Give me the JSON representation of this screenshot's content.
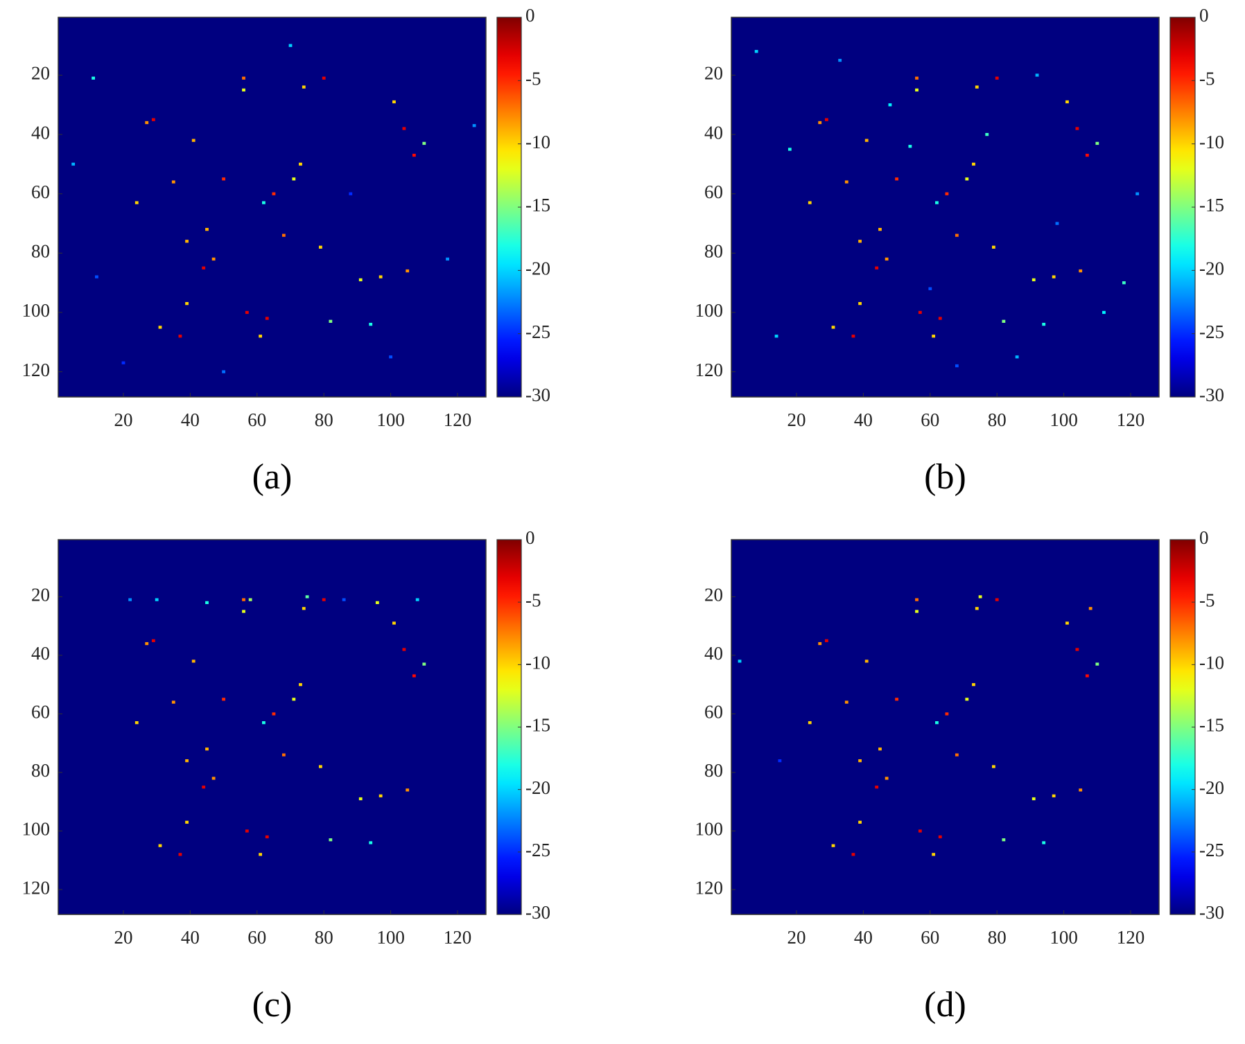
{
  "chart_data": [
    {
      "type": "heatmap",
      "label": "(a)",
      "colormap": "jet",
      "background": -30,
      "xlim": [
        0.5,
        128.5
      ],
      "ylim": [
        128.5,
        0.5
      ],
      "xticks": [
        20,
        40,
        60,
        80,
        100,
        120
      ],
      "yticks": [
        20,
        40,
        60,
        80,
        100,
        120
      ],
      "clim": [
        -30,
        0
      ],
      "cticks": [
        0,
        -5,
        -10,
        -15,
        -20,
        -25,
        -30
      ],
      "x": [
        29,
        27,
        56,
        56,
        74,
        80,
        101,
        104,
        107,
        110,
        41,
        50,
        71,
        73,
        65,
        24,
        35,
        45,
        62,
        68,
        39,
        47,
        44,
        79,
        91,
        97,
        105,
        39,
        57,
        63,
        31,
        37,
        61,
        94,
        82,
        11,
        125,
        12,
        88,
        117,
        20,
        50,
        100,
        5,
        70
      ],
      "y": [
        35,
        36,
        21,
        25,
        24,
        21,
        29,
        38,
        47,
        43,
        42,
        55,
        55,
        50,
        60,
        63,
        56,
        72,
        63,
        74,
        76,
        82,
        85,
        78,
        89,
        88,
        86,
        97,
        100,
        102,
        105,
        108,
        108,
        104,
        103,
        21,
        37,
        88,
        60,
        82,
        117,
        120,
        115,
        50,
        10
      ],
      "values": [
        -3,
        -8,
        -7,
        -12,
        -10,
        -3,
        -10,
        -3,
        -4,
        -15,
        -9,
        -5,
        -12,
        -10,
        -5,
        -10,
        -8,
        -9,
        -18,
        -7,
        -9,
        -8,
        -3,
        -10,
        -12,
        -10,
        -8,
        -10,
        -3,
        -3,
        -10,
        -3,
        -10,
        -18,
        -15,
        -18,
        -22,
        -24,
        -25,
        -22,
        -25,
        -23,
        -24,
        -21,
        -20
      ]
    },
    {
      "type": "heatmap",
      "label": "(b)",
      "colormap": "jet",
      "background": -30,
      "xlim": [
        0.5,
        128.5
      ],
      "ylim": [
        128.5,
        0.5
      ],
      "xticks": [
        20,
        40,
        60,
        80,
        100,
        120
      ],
      "yticks": [
        20,
        40,
        60,
        80,
        100,
        120
      ],
      "clim": [
        -30,
        0
      ],
      "cticks": [
        0,
        -5,
        -10,
        -15,
        -20,
        -25,
        -30
      ],
      "x": [
        29,
        27,
        56,
        56,
        74,
        80,
        101,
        104,
        107,
        110,
        41,
        50,
        71,
        73,
        65,
        24,
        35,
        45,
        62,
        68,
        39,
        47,
        44,
        79,
        91,
        97,
        105,
        39,
        57,
        63,
        31,
        37,
        61,
        94,
        82,
        8,
        18,
        33,
        48,
        60,
        77,
        86,
        98,
        112,
        122,
        14,
        54,
        68,
        92,
        118
      ],
      "y": [
        35,
        36,
        21,
        25,
        24,
        21,
        29,
        38,
        47,
        43,
        42,
        55,
        55,
        50,
        60,
        63,
        56,
        72,
        63,
        74,
        76,
        82,
        85,
        78,
        89,
        88,
        86,
        97,
        100,
        102,
        105,
        108,
        108,
        104,
        103,
        12,
        45,
        15,
        30,
        92,
        40,
        115,
        70,
        100,
        60,
        108,
        44,
        118,
        20,
        90
      ],
      "values": [
        -3,
        -8,
        -7,
        -12,
        -10,
        -3,
        -10,
        -3,
        -4,
        -15,
        -9,
        -5,
        -12,
        -10,
        -5,
        -10,
        -8,
        -9,
        -18,
        -7,
        -9,
        -8,
        -3,
        -10,
        -12,
        -10,
        -8,
        -10,
        -3,
        -3,
        -10,
        -3,
        -10,
        -18,
        -15,
        -20,
        -18,
        -22,
        -19,
        -24,
        -17,
        -21,
        -23,
        -19,
        -22,
        -20,
        -18,
        -24,
        -21,
        -17
      ]
    },
    {
      "type": "heatmap",
      "label": "(c)",
      "colormap": "jet",
      "background": -30,
      "xlim": [
        0.5,
        128.5
      ],
      "ylim": [
        128.5,
        0.5
      ],
      "xticks": [
        20,
        40,
        60,
        80,
        100,
        120
      ],
      "yticks": [
        20,
        40,
        60,
        80,
        100,
        120
      ],
      "clim": [
        -30,
        0
      ],
      "cticks": [
        0,
        -5,
        -10,
        -15,
        -20,
        -25,
        -30
      ],
      "x": [
        29,
        27,
        56,
        56,
        74,
        80,
        101,
        104,
        107,
        110,
        41,
        50,
        71,
        73,
        65,
        24,
        35,
        45,
        62,
        68,
        39,
        47,
        44,
        79,
        91,
        97,
        105,
        39,
        57,
        63,
        31,
        37,
        61,
        94,
        82,
        22,
        30,
        45,
        58,
        75,
        86,
        96,
        108
      ],
      "y": [
        35,
        36,
        21,
        25,
        24,
        21,
        29,
        38,
        47,
        43,
        42,
        55,
        55,
        50,
        60,
        63,
        56,
        72,
        63,
        74,
        76,
        82,
        85,
        78,
        89,
        88,
        86,
        97,
        100,
        102,
        105,
        108,
        108,
        104,
        103,
        21,
        21,
        22,
        21,
        20,
        21,
        22,
        21
      ],
      "values": [
        -3,
        -8,
        -7,
        -12,
        -10,
        -3,
        -10,
        -3,
        -4,
        -15,
        -9,
        -5,
        -12,
        -10,
        -5,
        -10,
        -8,
        -9,
        -18,
        -7,
        -9,
        -8,
        -3,
        -10,
        -12,
        -10,
        -8,
        -10,
        -3,
        -3,
        -10,
        -3,
        -10,
        -18,
        -15,
        -22,
        -20,
        -18,
        -14,
        -16,
        -24,
        -12,
        -20
      ]
    },
    {
      "type": "heatmap",
      "label": "(d)",
      "colormap": "jet",
      "background": -30,
      "xlim": [
        0.5,
        128.5
      ],
      "ylim": [
        128.5,
        0.5
      ],
      "xticks": [
        20,
        40,
        60,
        80,
        100,
        120
      ],
      "yticks": [
        20,
        40,
        60,
        80,
        100,
        120
      ],
      "clim": [
        -30,
        0
      ],
      "cticks": [
        0,
        -5,
        -10,
        -15,
        -20,
        -25,
        -30
      ],
      "x": [
        29,
        27,
        56,
        56,
        74,
        80,
        101,
        104,
        107,
        110,
        41,
        50,
        71,
        73,
        65,
        24,
        35,
        45,
        62,
        68,
        39,
        47,
        44,
        79,
        91,
        97,
        105,
        39,
        57,
        63,
        31,
        37,
        61,
        94,
        82,
        3,
        15,
        75,
        108
      ],
      "y": [
        35,
        36,
        21,
        25,
        24,
        21,
        29,
        38,
        47,
        43,
        42,
        55,
        55,
        50,
        60,
        63,
        56,
        72,
        63,
        74,
        76,
        82,
        85,
        78,
        89,
        88,
        86,
        97,
        100,
        102,
        105,
        108,
        108,
        104,
        103,
        42,
        76,
        20,
        24
      ],
      "values": [
        -3,
        -8,
        -7,
        -12,
        -10,
        -3,
        -10,
        -3,
        -4,
        -15,
        -9,
        -5,
        -12,
        -10,
        -5,
        -10,
        -8,
        -9,
        -18,
        -7,
        -9,
        -8,
        -3,
        -10,
        -12,
        -10,
        -8,
        -10,
        -3,
        -3,
        -10,
        -3,
        -10,
        -18,
        -15,
        -20,
        -25,
        -12,
        -8
      ]
    }
  ]
}
